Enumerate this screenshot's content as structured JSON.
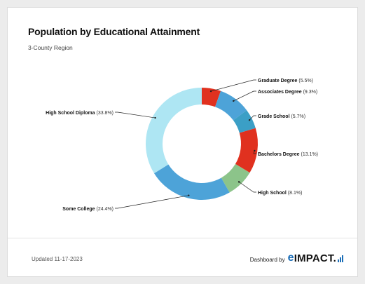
{
  "title": "Population by Educational Attainment",
  "subtitle": "3-County Region",
  "chart_data": {
    "type": "pie",
    "donut": true,
    "slices": [
      {
        "label": "Graduate Degree (5.5%)",
        "value": 5.5,
        "color": "#e0311f"
      },
      {
        "label": "Associates Degree (9.3%)",
        "value": 9.3,
        "color": "#4da3d8"
      },
      {
        "label": "Grade School (5.7%)",
        "value": 5.7,
        "color": "#3b9fc6"
      },
      {
        "label": "Bachelors Degree (13.1%)",
        "value": 13.1,
        "color": "#e0311f"
      },
      {
        "label": "High School (8.1%)",
        "value": 8.1,
        "color": "#8cc48a"
      },
      {
        "label": "Some College (24.4%)",
        "value": 24.4,
        "color": "#4da3d8"
      },
      {
        "label": "High School Diploma (33.8%)",
        "value": 33.8,
        "color": "#aee6f3"
      }
    ]
  },
  "footer": {
    "updated": "Updated 11-17-2023",
    "dashboard_by": "Dashboard by",
    "logo_e": "e",
    "logo_rest": "IMPACT."
  }
}
